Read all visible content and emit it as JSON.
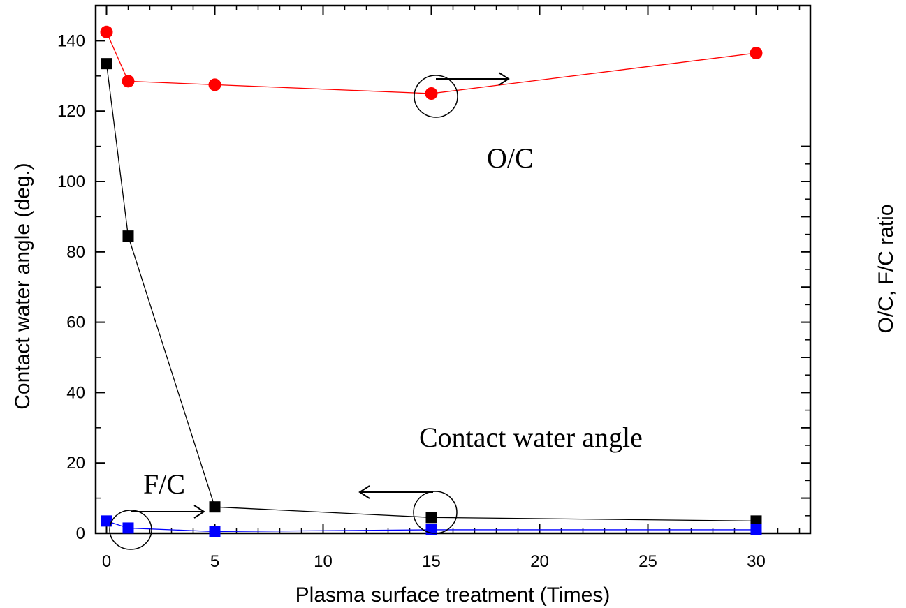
{
  "chart_data": {
    "type": "line",
    "xlabel": "Plasma surface treatment (Times)",
    "ylabel": "Contact water angle (deg.)",
    "y2label": "O/C, F/C ratio",
    "xlim": [
      -0.5,
      32.5
    ],
    "ylim": [
      0,
      150
    ],
    "xticks": [
      0,
      5,
      10,
      15,
      20,
      25,
      30
    ],
    "xtick_labels": [
      "0",
      "5",
      "10",
      "15",
      "20",
      "25",
      "30"
    ],
    "yticks": [
      0,
      20,
      40,
      60,
      80,
      100,
      120,
      140
    ],
    "ytick_labels": [
      "0",
      "20",
      "40",
      "60",
      "80",
      "100",
      "120",
      "140"
    ],
    "grid": false,
    "x": [
      0,
      1,
      5,
      15,
      30
    ],
    "series": [
      {
        "values": [
          142.5,
          128.5,
          127.5,
          125,
          136.5
        ],
        "color": "#ff0000",
        "line_color": "#ff0000",
        "marker": "circle",
        "axis": "right"
      },
      {
        "values": [
          133.5,
          84.5,
          7.5,
          4.5,
          3.5
        ],
        "color": "#000000",
        "line_color": "#000000",
        "marker": "square",
        "axis": "left"
      },
      {
        "values": [
          3.5,
          1.5,
          0.5,
          1.0,
          1.0
        ],
        "color": "#0000ff",
        "line_color": "#0000ff",
        "marker": "square",
        "axis": "right"
      }
    ],
    "annotations": [
      {
        "text": "O/C"
      },
      {
        "text": "Contact water angle"
      },
      {
        "text": "F/C"
      }
    ]
  }
}
